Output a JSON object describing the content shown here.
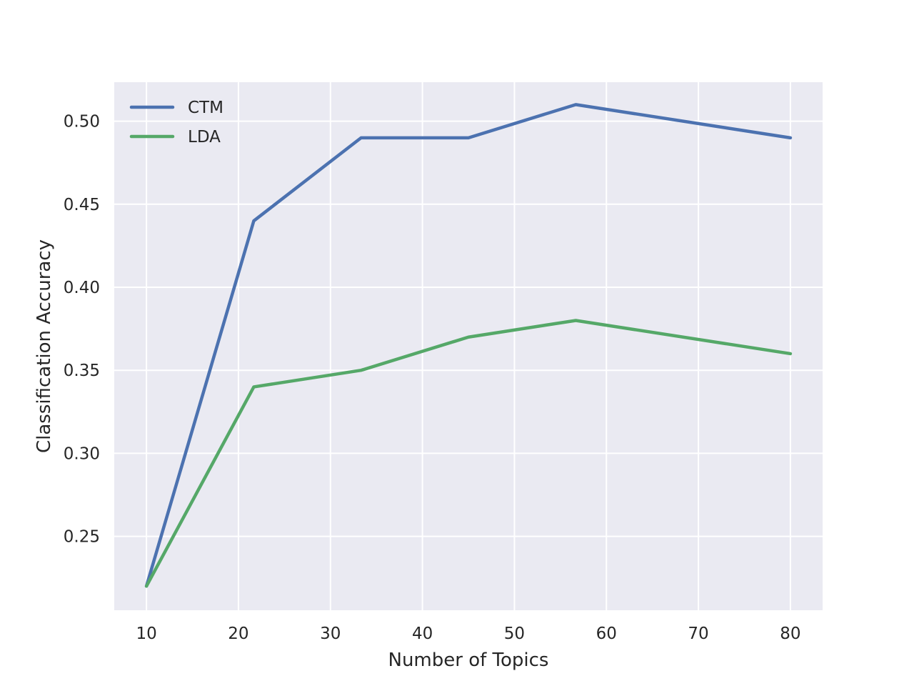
{
  "chart_data": {
    "type": "line",
    "xlabel": "Number of Topics",
    "ylabel": "Classification Accuracy",
    "x": [
      10,
      21.67,
      33.33,
      45,
      56.67,
      80
    ],
    "xlim": [
      6.5,
      83.5
    ],
    "ylim": [
      0.2055,
      0.5235
    ],
    "xticks": [
      10,
      20,
      30,
      40,
      50,
      60,
      70,
      80
    ],
    "xtick_labels": [
      "10",
      "20",
      "30",
      "40",
      "50",
      "60",
      "70",
      "80"
    ],
    "yticks": [
      0.25,
      0.3,
      0.35,
      0.4,
      0.45,
      0.5
    ],
    "ytick_labels": [
      "0.25",
      "0.30",
      "0.35",
      "0.40",
      "0.45",
      "0.50"
    ],
    "grid": true,
    "legend_position": "upper-left",
    "background_color": "#EAEAF2",
    "grid_color": "#FFFFFF",
    "series": [
      {
        "name": "CTM",
        "color": "#4C72B0",
        "x": [
          10,
          21.67,
          33.33,
          45,
          56.67,
          80
        ],
        "values": [
          0.22,
          0.44,
          0.49,
          0.49,
          0.51,
          0.49
        ]
      },
      {
        "name": "LDA",
        "color": "#55A868",
        "x": [
          10,
          21.67,
          33.33,
          45,
          56.67,
          80
        ],
        "values": [
          0.22,
          0.34,
          0.35,
          0.37,
          0.38,
          0.36
        ]
      }
    ]
  }
}
